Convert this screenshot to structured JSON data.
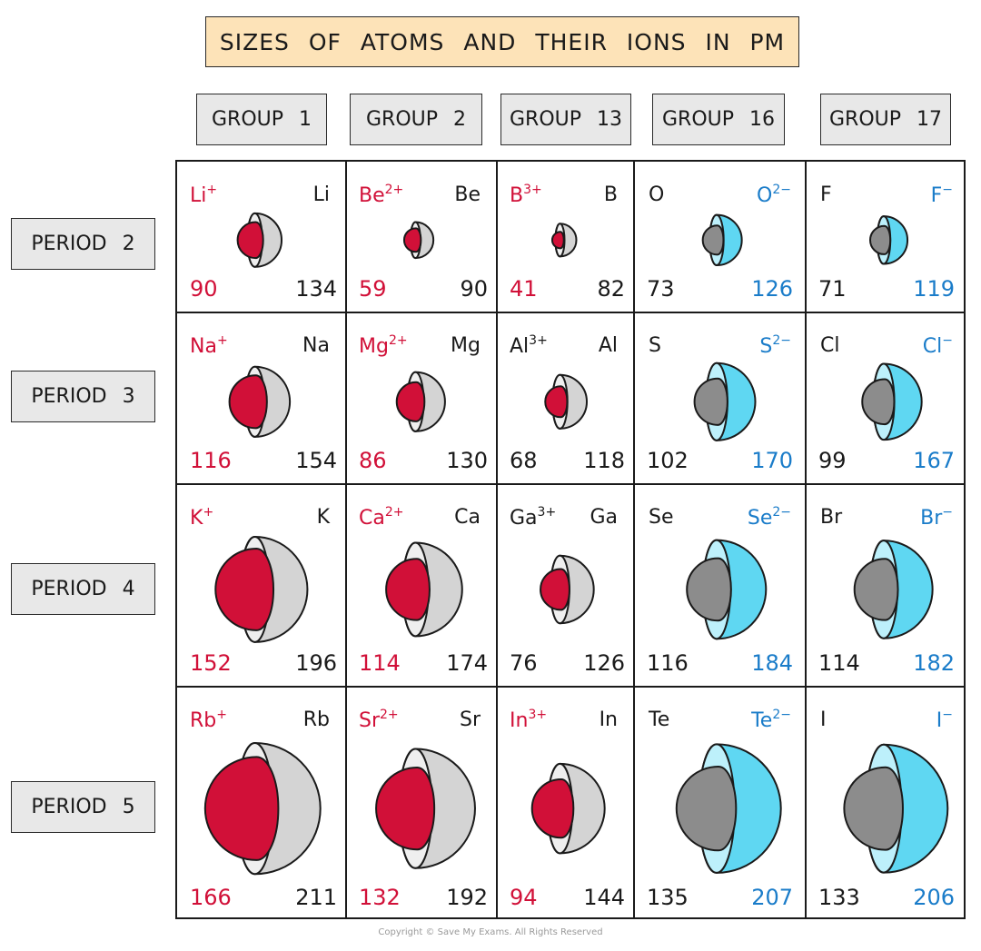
{
  "title": "SIZES OF ATOMS AND THEIR IONS IN PM",
  "groups": [
    "GROUP 1",
    "GROUP 2",
    "GROUP 13",
    "GROUP 16",
    "GROUP 17"
  ],
  "periods": [
    "PERIOD 2",
    "PERIOD 3",
    "PERIOD 4",
    "PERIOD 5"
  ],
  "copyright": "Copyright © Save My Exams. All Rights Reserved",
  "colors": {
    "cation": "#d11038",
    "anion": "#5fd7f2",
    "anion_text": "#1a7cc9",
    "atom": "#d4d4d4",
    "anion_core": "#8c8c8c"
  },
  "cells": [
    [
      {
        "type": "cation",
        "atom": "Li",
        "ion_base": "Li",
        "ion_charge": "+",
        "ion_radius": 90,
        "atom_radius": 134
      },
      {
        "type": "cation",
        "atom": "Be",
        "ion_base": "Be",
        "ion_charge": "2+",
        "ion_radius": 59,
        "atom_radius": 90
      },
      {
        "type": "cation",
        "atom": "B",
        "ion_base": "B",
        "ion_charge": "3+",
        "ion_radius": 41,
        "atom_radius": 82
      },
      {
        "type": "anion",
        "atom": "O",
        "ion_base": "O",
        "ion_charge": "2−",
        "ion_radius": 126,
        "atom_radius": 73
      },
      {
        "type": "anion",
        "atom": "F",
        "ion_base": "F",
        "ion_charge": "−",
        "ion_radius": 119,
        "atom_radius": 71
      }
    ],
    [
      {
        "type": "cation",
        "atom": "Na",
        "ion_base": "Na",
        "ion_charge": "+",
        "ion_radius": 116,
        "atom_radius": 154
      },
      {
        "type": "cation",
        "atom": "Mg",
        "ion_base": "Mg",
        "ion_charge": "2+",
        "ion_radius": 86,
        "atom_radius": 130
      },
      {
        "type": "cation_plain",
        "atom": "Al",
        "ion_base": "Al",
        "ion_charge": "3+",
        "ion_radius": 68,
        "atom_radius": 118
      },
      {
        "type": "anion",
        "atom": "S",
        "ion_base": "S",
        "ion_charge": "2−",
        "ion_radius": 170,
        "atom_radius": 102
      },
      {
        "type": "anion",
        "atom": "Cl",
        "ion_base": "Cl",
        "ion_charge": "−",
        "ion_radius": 167,
        "atom_radius": 99
      }
    ],
    [
      {
        "type": "cation",
        "atom": "K",
        "ion_base": "K",
        "ion_charge": "+",
        "ion_radius": 152,
        "atom_radius": 196
      },
      {
        "type": "cation",
        "atom": "Ca",
        "ion_base": "Ca",
        "ion_charge": "2+",
        "ion_radius": 114,
        "atom_radius": 174
      },
      {
        "type": "cation_plain",
        "atom": "Ga",
        "ion_base": "Ga",
        "ion_charge": "3+",
        "ion_radius": 76,
        "atom_radius": 126
      },
      {
        "type": "anion",
        "atom": "Se",
        "ion_base": "Se",
        "ion_charge": "2−",
        "ion_radius": 184,
        "atom_radius": 116
      },
      {
        "type": "anion",
        "atom": "Br",
        "ion_base": "Br",
        "ion_charge": "−",
        "ion_radius": 182,
        "atom_radius": 114
      }
    ],
    [
      {
        "type": "cation",
        "atom": "Rb",
        "ion_base": "Rb",
        "ion_charge": "+",
        "ion_radius": 166,
        "atom_radius": 211
      },
      {
        "type": "cation",
        "atom": "Sr",
        "ion_base": "Sr",
        "ion_charge": "2+",
        "ion_radius": 132,
        "atom_radius": 192
      },
      {
        "type": "cation",
        "atom": "In",
        "ion_base": "In",
        "ion_charge": "3+",
        "ion_radius": 94,
        "atom_radius": 144
      },
      {
        "type": "anion",
        "atom": "Te",
        "ion_base": "Te",
        "ion_charge": "2−",
        "ion_radius": 207,
        "atom_radius": 135
      },
      {
        "type": "anion",
        "atom": "I",
        "ion_base": "I",
        "ion_charge": "−",
        "ion_radius": 206,
        "atom_radius": 133
      }
    ]
  ]
}
